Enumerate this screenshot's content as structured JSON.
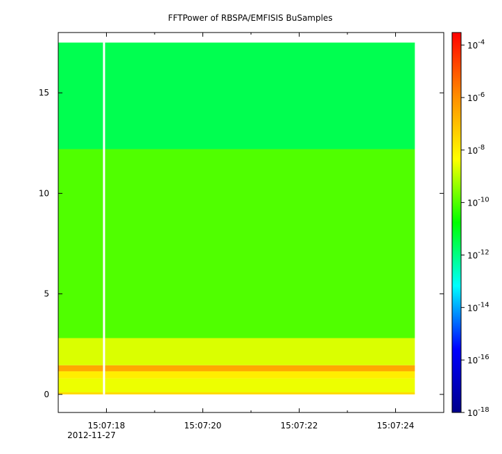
{
  "chart_data": {
    "type": "heatmap",
    "title": "FFTPower of RBSPA/EMFISIS  BuSamples",
    "xlabel": "",
    "ylabel": "",
    "x_tick_labels": [
      "15:07:18",
      "15:07:20",
      "15:07:22",
      "15:07:24"
    ],
    "x_date_label": "2012-11-27",
    "x_range_seconds": [
      17.0,
      25.0
    ],
    "x_major_ticks_seconds": [
      18,
      20,
      22,
      24
    ],
    "x_minor_ticks_seconds": [
      19,
      21,
      23,
      25
    ],
    "y_ticks": [
      0,
      5,
      10,
      15
    ],
    "ylim": [
      -0.9,
      18.0
    ],
    "data_time_range_seconds": [
      17.0,
      24.4
    ],
    "data_freq_range": [
      0.0,
      17.5
    ],
    "gap_at_seconds": 17.95,
    "bands": [
      {
        "y_from": 0.0,
        "y_to": 0.1,
        "power": 3e-08
      },
      {
        "y_from": 0.1,
        "y_to": 0.8,
        "power": 3e-09
      },
      {
        "y_from": 0.8,
        "y_to": 1.15,
        "power": 1e-08
      },
      {
        "y_from": 1.15,
        "y_to": 1.45,
        "power": 3e-07
      },
      {
        "y_from": 1.45,
        "y_to": 2.8,
        "power": 2e-09
      },
      {
        "y_from": 2.8,
        "y_to": 12.2,
        "power": 1e-10
      },
      {
        "y_from": 12.2,
        "y_to": 17.5,
        "power": 3e-12
      }
    ],
    "colorbar": {
      "scale": "log",
      "range": [
        1e-18,
        0.0003
      ],
      "tick_labels": [
        {
          "base": "10",
          "exp": "-4"
        },
        {
          "base": "10",
          "exp": "-6"
        },
        {
          "base": "10",
          "exp": "-8"
        },
        {
          "base": "10",
          "exp": "-10"
        },
        {
          "base": "10",
          "exp": "-12"
        },
        {
          "base": "10",
          "exp": "-14"
        },
        {
          "base": "10",
          "exp": "-16"
        },
        {
          "base": "10",
          "exp": "-18"
        }
      ],
      "colormap": [
        "#00008b",
        "#0000ff",
        "#00ffff",
        "#00ff00",
        "#ffff00",
        "#ff8c00",
        "#ff0000"
      ]
    },
    "grid": false,
    "legend": "none"
  }
}
